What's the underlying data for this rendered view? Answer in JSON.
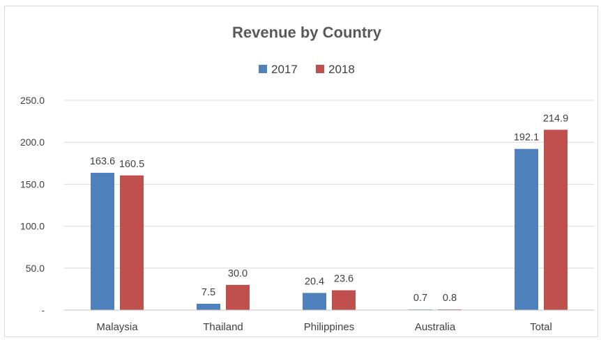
{
  "chart_data": {
    "type": "bar",
    "title": "Revenue by Country",
    "categories": [
      "Malaysia",
      "Thailand",
      "Philippines",
      "Australia",
      "Total"
    ],
    "series": [
      {
        "name": "2017",
        "color": "#4f81bd",
        "values": [
          163.6,
          7.5,
          20.4,
          0.7,
          192.1
        ]
      },
      {
        "name": "2018",
        "color": "#c0504d",
        "values": [
          160.5,
          30.0,
          23.6,
          0.8,
          214.9
        ]
      }
    ],
    "data_labels": [
      [
        "163.6",
        "7.5",
        "20.4",
        "0.7",
        "192.1"
      ],
      [
        "160.5",
        "30.0",
        "23.6",
        "0.8",
        "214.9"
      ]
    ],
    "y_ticks": [
      "-",
      "50.0",
      "100.0",
      "150.0",
      "200.0",
      "250.0"
    ],
    "ylim": [
      0,
      250
    ],
    "grid": true,
    "legend_position": "top"
  }
}
